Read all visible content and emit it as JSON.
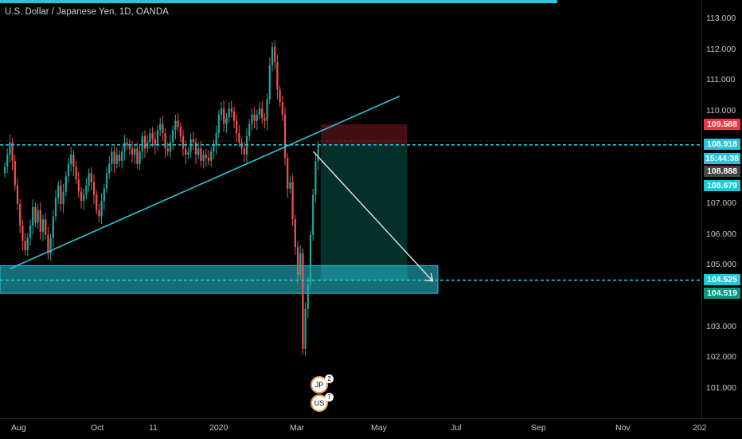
{
  "header": {
    "title": "U.S. Dollar / Japanese Yen, 1D, OANDA"
  },
  "colors": {
    "background": "#000000",
    "candle_up": "#26a69a",
    "candle_down": "#ef5350",
    "drawing_cyan": "#26c6da",
    "stop_red": "#f23645",
    "target_green": "#089981",
    "arrow_white": "#e8e8e8"
  },
  "chart_data": {
    "type": "candlestick",
    "symbol": "U.S. Dollar / Japanese Yen",
    "interval": "1D",
    "source": "OANDA",
    "y_axis": {
      "ticks": [
        "113.000",
        "112.000",
        "111.000",
        "110.000",
        "109.000",
        "108.000",
        "107.000",
        "106.000",
        "105.000",
        "104.000",
        "103.000",
        "102.000",
        "101.000"
      ]
    },
    "x_axis": {
      "ticks": [
        "Aug",
        "Oct",
        "11",
        "2020",
        "Mar",
        "May",
        "Jul",
        "Sep",
        "Nov",
        "202"
      ]
    },
    "price_labels": [
      {
        "value": "109.588",
        "kind": "stop",
        "color": "#f23645"
      },
      {
        "value": "108.918",
        "kind": "entry",
        "color": "#26c6da"
      },
      {
        "value": "15:44:38",
        "kind": "countdown",
        "color": "#26c6da"
      },
      {
        "value": "108.888",
        "kind": "last-price",
        "color": "#444444"
      },
      {
        "value": "108.679",
        "kind": "line",
        "color": "#26c6da"
      },
      {
        "value": "104.525",
        "kind": "line",
        "color": "#26c6da"
      },
      {
        "value": "104.519",
        "kind": "target",
        "color": "#089981"
      }
    ],
    "approx_closes": [
      108.2,
      108.6,
      109.0,
      108.4,
      107.6,
      107.0,
      106.3,
      105.8,
      105.5,
      105.9,
      106.3,
      106.9,
      106.4,
      106.8,
      106.1,
      106.5,
      106.0,
      105.4,
      105.9,
      106.6,
      107.2,
      107.6,
      107.0,
      107.4,
      107.9,
      108.3,
      108.6,
      108.2,
      107.8,
      107.4,
      107.1,
      107.3,
      107.6,
      108.0,
      107.7,
      107.3,
      106.8,
      106.6,
      107.1,
      107.5,
      108.0,
      108.3,
      108.7,
      108.3,
      108.6,
      108.4,
      108.7,
      109.0,
      108.9,
      108.8,
      108.6,
      108.8,
      108.3,
      108.7,
      109.2,
      108.8,
      109.0,
      109.3,
      109.1,
      108.9,
      109.4,
      109.6,
      109.3,
      108.8,
      108.7,
      109.0,
      109.4,
      109.7,
      109.5,
      109.2,
      108.8,
      108.6,
      108.7,
      109.1,
      109.0,
      108.6,
      108.8,
      108.4,
      108.6,
      108.5,
      108.4,
      108.7,
      108.9,
      109.3,
      109.9,
      110.1,
      109.6,
      109.8,
      110.1,
      110.0,
      109.7,
      109.3,
      109.0,
      108.8,
      108.6,
      109.2,
      109.6,
      109.9,
      109.7,
      109.9,
      110.1,
      109.8,
      109.7,
      110.4,
      111.5,
      112.1,
      111.6,
      110.7,
      110.3,
      109.9,
      108.5,
      107.5,
      107.7,
      106.5,
      105.6,
      104.7,
      105.4,
      102.3,
      103.6,
      104.4,
      106.0,
      107.3,
      108.4,
      108.9
    ]
  },
  "drawings": {
    "trendline": {
      "from": {
        "bar": 2,
        "price": 104.9
      },
      "to": {
        "bar": 155,
        "price": 110.5
      }
    },
    "support_zone": {
      "top": 105.0,
      "bottom": 104.1,
      "to_bar": 170
    },
    "short_position": {
      "entry": 108.918,
      "stop": 109.588,
      "target": 104.519,
      "start_bar": 124,
      "end_bar": 158
    },
    "projection_arrow": {
      "from": {
        "bar": 118,
        "price": 108.7
      },
      "to": {
        "bar": 162,
        "price": 104.5
      }
    }
  },
  "events": [
    {
      "flag": "JP",
      "count": "2",
      "icon": "japan-flag-icon"
    },
    {
      "flag": "US",
      "count": "7",
      "icon": "us-flag-icon"
    }
  ]
}
